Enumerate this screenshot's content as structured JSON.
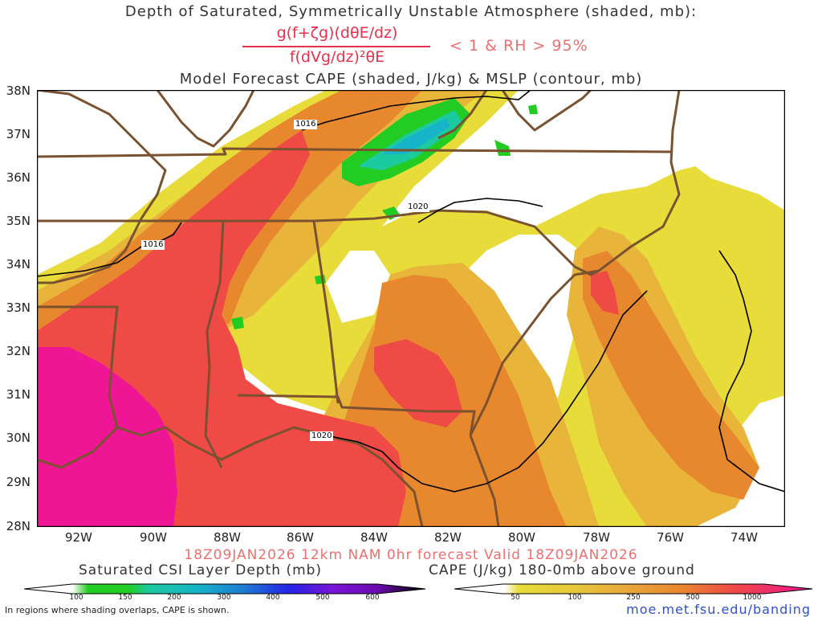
{
  "header": {
    "title_line1": "Depth of Saturated, Symmetrically Unstable Atmosphere (shaded, mb):",
    "fraction_numerator": "g(f+ζg)(dθE/dz)",
    "fraction_denominator": "f(dVg/dz)²θE",
    "condition": "< 1 & RH > 95%",
    "title_line3": "Model Forecast CAPE (shaded, J/kg) & MSLP (contour, mb)"
  },
  "map": {
    "lat_labels": [
      "38N",
      "37N",
      "36N",
      "35N",
      "34N",
      "33N",
      "32N",
      "31N",
      "30N",
      "29N",
      "28N"
    ],
    "lon_labels": [
      "92W",
      "90W",
      "88W",
      "86W",
      "84W",
      "82W",
      "80W",
      "78W",
      "76W",
      "74W"
    ],
    "isobar_labels": [
      "1016",
      "1020",
      "1016",
      "1020"
    ],
    "colors": {
      "border": "#7a5230",
      "isobar": "#000000"
    }
  },
  "valid_line": "18Z09JAN2026 12km NAM 0hr forecast Valid 18Z09JAN2026",
  "colorbar_csi": {
    "title": "Saturated CSI Layer Depth (mb)",
    "ticks": [
      "100",
      "150",
      "200",
      "300",
      "400",
      "500",
      "600"
    ],
    "colors": [
      "#22cc22",
      "#1ccaa0",
      "#15b4c8",
      "#1e7ad2",
      "#2424e6",
      "#7a14d8",
      "#000000"
    ]
  },
  "colorbar_cape": {
    "title": "CAPE (J/kg) 180-0mb above ground",
    "ticks": [
      "50",
      "100",
      "250",
      "500",
      "1000"
    ],
    "colors": [
      "#e8dc3a",
      "#e8b43a",
      "#e8882e",
      "#ef4a46",
      "#ee1694"
    ]
  },
  "footer": {
    "note": "In regions where shading overlaps, CAPE is shown.",
    "url": "moe.met.fsu.edu/banding"
  }
}
